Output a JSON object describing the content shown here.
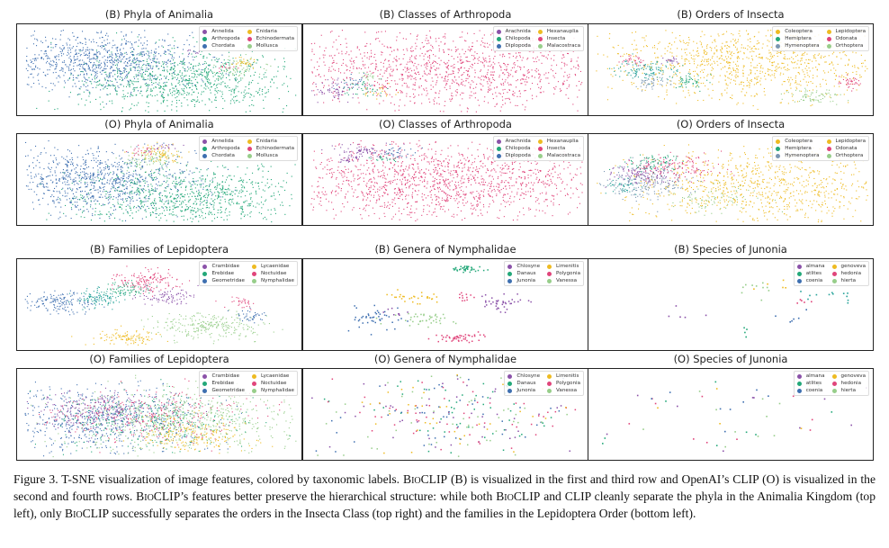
{
  "figure": {
    "caption_label": "Figure 3.",
    "caption_parts": [
      {
        "t": "T-SNE visualization of image features, colored by taxonomic labels. "
      },
      {
        "t": "BioCLIP",
        "sc": true
      },
      {
        "t": " (B) is visualized in the first and third row and OpenAI’s CLIP (O) is visualized in the second and fourth rows. "
      },
      {
        "t": "BioCLIP",
        "sc": true
      },
      {
        "t": "’s features better preserve the hierarchical structure: while both "
      },
      {
        "t": "BioCLIP",
        "sc": true
      },
      {
        "t": " and CLIP cleanly separate the phyla in the Animalia Kingdom (top left), only "
      },
      {
        "t": "BioCLIP",
        "sc": true
      },
      {
        "t": " successfully separates the orders in the Insecta Class (top right) and the families in the Lepidoptera Order (bottom left)."
      }
    ]
  },
  "colors": {
    "blue": "#3e6fb0",
    "green": "#23a879",
    "purple": "#8b52a9",
    "pink": "#e0457b",
    "yellow": "#eebb22",
    "lightgreen": "#97ce8a",
    "grayblue": "#7a96b2",
    "teal": "#27a39a"
  },
  "chart_data": [
    {
      "type": "scatter",
      "title": "(B) Phyla of Animalia",
      "legend": [
        "Annelida",
        "Cnidaria",
        "Arthropoda",
        "Echinodermata",
        "Chordata",
        "Mollusca"
      ],
      "legend_colors": [
        "#8b52a9",
        "#eebb22",
        "#23a879",
        "#e0457b",
        "#3e6fb0",
        "#97ce8a"
      ],
      "density": "high",
      "legend_placement": "top-right"
    },
    {
      "type": "scatter",
      "title": "(B) Classes of Arthropoda",
      "legend": [
        "Arachnida",
        "Hexanauplia",
        "Chilopoda",
        "Insecta",
        "Diplopoda",
        "Malacostraca"
      ],
      "legend_colors": [
        "#8b52a9",
        "#eebb22",
        "#23a879",
        "#e0457b",
        "#3e6fb0",
        "#97ce8a"
      ],
      "density": "high",
      "legend_placement": "top-right"
    },
    {
      "type": "scatter",
      "title": "(B) Orders of Insecta",
      "legend": [
        "Coleoptera",
        "Lepidoptera",
        "Hemiptera",
        "Odonata",
        "Hymenoptera",
        "Orthoptera"
      ],
      "legend_colors": [
        "#eebb22",
        "#eebb22",
        "#23a879",
        "#e0457b",
        "#7a96b2",
        "#97ce8a"
      ],
      "density": "high",
      "legend_placement": "top-right"
    },
    {
      "type": "scatter",
      "title": "(O) Phyla of Animalia",
      "legend": [
        "Annelida",
        "Cnidaria",
        "Arthropoda",
        "Echinodermata",
        "Chordata",
        "Mollusca"
      ],
      "legend_colors": [
        "#8b52a9",
        "#eebb22",
        "#23a879",
        "#e0457b",
        "#3e6fb0",
        "#97ce8a"
      ],
      "density": "high",
      "legend_placement": "top-right"
    },
    {
      "type": "scatter",
      "title": "(O) Classes of Arthropoda",
      "legend": [
        "Arachnida",
        "Hexanauplia",
        "Chilopoda",
        "Insecta",
        "Diplopoda",
        "Malacostraca"
      ],
      "legend_colors": [
        "#8b52a9",
        "#eebb22",
        "#23a879",
        "#e0457b",
        "#3e6fb0",
        "#97ce8a"
      ],
      "density": "high",
      "legend_placement": "top-right"
    },
    {
      "type": "scatter",
      "title": "(O) Orders of Insecta",
      "legend": [
        "Coleoptera",
        "Lepidoptera",
        "Hemiptera",
        "Odonata",
        "Hymenoptera",
        "Orthoptera"
      ],
      "legend_colors": [
        "#eebb22",
        "#eebb22",
        "#23a879",
        "#e0457b",
        "#7a96b2",
        "#97ce8a"
      ],
      "density": "high",
      "legend_placement": "top-right"
    },
    {
      "type": "scatter",
      "title": "(B) Families of Lepidoptera",
      "legend": [
        "Crambidae",
        "Lycaenidae",
        "Erebidae",
        "Noctuidae",
        "Geometridae",
        "Nymphalidae"
      ],
      "legend_colors": [
        "#8b52a9",
        "#eebb22",
        "#23a879",
        "#e0457b",
        "#3e6fb0",
        "#97ce8a"
      ],
      "density": "medium",
      "legend_placement": "top-right"
    },
    {
      "type": "scatter",
      "title": "(B) Genera of Nymphalidae",
      "legend": [
        "Chlosyne",
        "Limenitis",
        "Danaus",
        "Polygonia",
        "Junonia",
        "Vanessa"
      ],
      "legend_colors": [
        "#8b52a9",
        "#eebb22",
        "#23a879",
        "#e0457b",
        "#3e6fb0",
        "#97ce8a"
      ],
      "density": "low",
      "legend_placement": "top-right"
    },
    {
      "type": "scatter",
      "title": "(B) Species of Junonia",
      "legend": [
        "almana",
        "genoveva",
        "atlites",
        "hedonia",
        "coenia",
        "hierta"
      ],
      "legend_colors": [
        "#8b52a9",
        "#eebb22",
        "#23a879",
        "#e0457b",
        "#3e6fb0",
        "#97ce8a"
      ],
      "density": "sparse",
      "legend_placement": "top-right"
    },
    {
      "type": "scatter",
      "title": "(O) Families of Lepidoptera",
      "legend": [
        "Crambidae",
        "Lycaenidae",
        "Erebidae",
        "Noctuidae",
        "Geometridae",
        "Nymphalidae"
      ],
      "legend_colors": [
        "#8b52a9",
        "#eebb22",
        "#23a879",
        "#e0457b",
        "#3e6fb0",
        "#97ce8a"
      ],
      "density": "medium",
      "legend_placement": "top-right"
    },
    {
      "type": "scatter",
      "title": "(O) Genera of Nymphalidae",
      "legend": [
        "Chlosyne",
        "Limenitis",
        "Danaus",
        "Polygonia",
        "Junonia",
        "Vanessa"
      ],
      "legend_colors": [
        "#8b52a9",
        "#eebb22",
        "#23a879",
        "#e0457b",
        "#3e6fb0",
        "#97ce8a"
      ],
      "density": "low",
      "legend_placement": "top-right"
    },
    {
      "type": "scatter",
      "title": "(O) Species of Junonia",
      "legend": [
        "almana",
        "genoveva",
        "atlites",
        "hedonia",
        "coenia",
        "hierta"
      ],
      "legend_colors": [
        "#8b52a9",
        "#eebb22",
        "#23a879",
        "#e0457b",
        "#3e6fb0",
        "#97ce8a"
      ],
      "density": "sparse",
      "legend_placement": "top-right"
    }
  ]
}
